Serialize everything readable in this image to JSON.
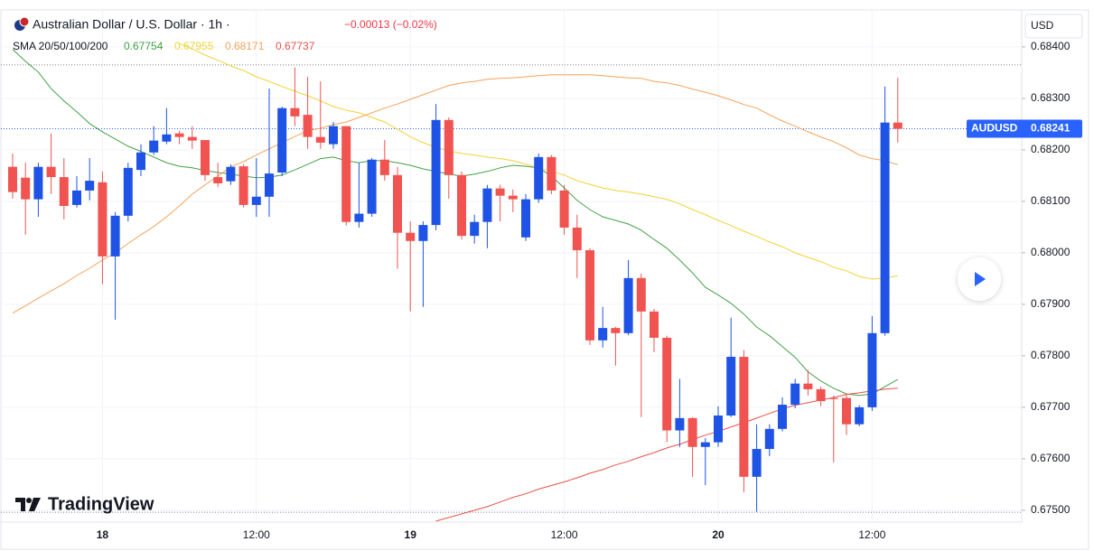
{
  "chart_data": {
    "type": "candlestick",
    "title": "Australian Dollar / U.S. Dollar · 1h ·",
    "change": "−0.00013 (−0.02%)",
    "currency": "USD",
    "symbol": "AUDUSD",
    "brand": "TradingView",
    "up_color": "#1e53e5",
    "down_color": "#f05350",
    "categories": [
      null,
      null,
      null,
      null,
      null,
      null,
      null,
      "18",
      null,
      null,
      null,
      null,
      null,
      null,
      null,
      null,
      null,
      null,
      null,
      "12:00",
      null,
      null,
      null,
      null,
      null,
      null,
      null,
      null,
      null,
      null,
      null,
      "19",
      null,
      null,
      null,
      null,
      null,
      null,
      null,
      null,
      null,
      null,
      null,
      "12:00",
      null,
      null,
      null,
      null,
      null,
      null,
      null,
      null,
      null,
      null,
      null,
      "20",
      null,
      null,
      null,
      null,
      null,
      null,
      null,
      null,
      null,
      null,
      null,
      "12:00",
      null,
      null
    ],
    "open": [
      0.68167,
      0.68146,
      0.68104,
      0.68167,
      0.68147,
      0.68093,
      0.68121,
      0.68137,
      0.67993,
      0.68072,
      0.68161,
      0.68195,
      0.68216,
      0.68232,
      0.68225,
      0.68219,
      0.68147,
      0.68139,
      0.68168,
      0.68093,
      0.68109,
      0.68156,
      0.68281,
      0.68268,
      0.68225,
      0.68211,
      0.68246,
      0.6806,
      0.68076,
      0.68181,
      0.68151,
      0.68039,
      0.68023,
      0.68054,
      0.68258,
      0.68151,
      0.68033,
      0.6806,
      0.68125,
      0.68111,
      0.6803,
      0.68104,
      0.68186,
      0.68121,
      0.68049,
      0.68005,
      0.6783,
      0.67854,
      0.67844,
      0.67951,
      0.67886,
      0.67835,
      0.67655,
      0.67679,
      0.67623,
      0.67632,
      0.67684,
      0.67798,
      0.67565,
      0.67619,
      0.67658,
      0.67705,
      0.67746,
      0.67735,
      0.67718,
      0.67718,
      0.67667,
      0.677,
      0.67844,
      0.68253
    ],
    "high": [
      0.68193,
      0.68175,
      0.68175,
      0.68232,
      0.68184,
      0.68149,
      0.68184,
      0.68158,
      0.68079,
      0.68175,
      0.68211,
      0.68246,
      0.68281,
      0.68237,
      0.68246,
      0.68219,
      0.68175,
      0.68172,
      0.68172,
      0.68184,
      0.68319,
      0.68284,
      0.6836,
      0.68342,
      0.68333,
      0.68254,
      0.68246,
      0.68175,
      0.68184,
      0.68219,
      0.68167,
      0.68061,
      0.68061,
      0.68289,
      0.68263,
      0.68158,
      0.68074,
      0.68132,
      0.68132,
      0.68123,
      0.68114,
      0.68193,
      0.6819,
      0.68132,
      0.68074,
      0.68009,
      0.67895,
      0.67856,
      0.67986,
      0.6796,
      0.67891,
      0.67839,
      0.67755,
      0.67681,
      0.6764,
      0.67702,
      0.67874,
      0.67811,
      0.67667,
      0.67667,
      0.67719,
      0.67755,
      0.67772,
      0.6774,
      0.67723,
      0.67726,
      0.67704,
      0.67877,
      0.68323,
      0.6834
    ],
    "low": [
      0.68105,
      0.68035,
      0.6807,
      0.68114,
      0.68065,
      0.68088,
      0.68102,
      0.67939,
      0.6787,
      0.68061,
      0.68149,
      0.6819,
      0.68211,
      0.68211,
      0.68202,
      0.6814,
      0.68128,
      0.68132,
      0.68088,
      0.6807,
      0.6807,
      0.68149,
      0.68246,
      0.68202,
      0.68202,
      0.68202,
      0.68053,
      0.68049,
      0.6807,
      0.6814,
      0.67969,
      0.67886,
      0.67895,
      0.68044,
      0.68105,
      0.68026,
      0.68018,
      0.68009,
      0.68061,
      0.68079,
      0.68023,
      0.68097,
      0.68114,
      0.68035,
      0.67951,
      0.67821,
      0.67816,
      0.67781,
      0.6784,
      0.67681,
      0.67807,
      0.67632,
      0.67623,
      0.67565,
      0.67549,
      0.67623,
      0.67681,
      0.67535,
      0.67497,
      0.67605,
      0.67653,
      0.67698,
      0.67723,
      0.67702,
      0.67593,
      0.67646,
      0.67663,
      0.67693,
      0.67839,
      0.68214
    ],
    "close": [
      0.68118,
      0.68104,
      0.68167,
      0.68147,
      0.68091,
      0.68121,
      0.6814,
      0.67993,
      0.68072,
      0.68165,
      0.68195,
      0.68218,
      0.6823,
      0.68225,
      0.68218,
      0.68151,
      0.68135,
      0.68167,
      0.68093,
      0.68109,
      0.68154,
      0.68281,
      0.68265,
      0.68225,
      0.68214,
      0.68246,
      0.6806,
      0.68076,
      0.68181,
      0.68151,
      0.68039,
      0.68023,
      0.68054,
      0.68258,
      0.68151,
      0.68033,
      0.6806,
      0.68125,
      0.68111,
      0.68104,
      0.68104,
      0.68186,
      0.68121,
      0.68049,
      0.68005,
      0.6783,
      0.67854,
      0.67844,
      0.67951,
      0.67886,
      0.67835,
      0.67655,
      0.67679,
      0.67623,
      0.67632,
      0.67684,
      0.67798,
      0.67565,
      0.67619,
      0.67658,
      0.67705,
      0.67746,
      0.67735,
      0.67712,
      0.67716,
      0.67667,
      0.677,
      0.67844,
      0.68253,
      0.68241
    ],
    "indicator": {
      "label": "SMA 20/50/100/200",
      "series": [
        {
          "color": "#43a047",
          "values": [
            0.68395,
            0.68372,
            0.68351,
            0.68319,
            0.68295,
            0.68274,
            0.68251,
            0.68235,
            0.68221,
            0.68207,
            0.68197,
            0.68186,
            0.68175,
            0.68168,
            0.68165,
            0.6816,
            0.68156,
            0.68153,
            0.68149,
            0.68146,
            0.68147,
            0.68151,
            0.68161,
            0.68172,
            0.68183,
            0.68186,
            0.68179,
            0.68175,
            0.68179,
            0.68179,
            0.68175,
            0.6817,
            0.68163,
            0.68158,
            0.68153,
            0.68149,
            0.68153,
            0.68158,
            0.68165,
            0.6817,
            0.68168,
            0.68165,
            0.68149,
            0.68126,
            0.68102,
            0.68084,
            0.6807,
            0.68063,
            0.68056,
            0.68044,
            0.68026,
            0.68009,
            0.67986,
            0.67961,
            0.67933,
            0.67918,
            0.67902,
            0.67881,
            0.67856,
            0.67839,
            0.67818,
            0.67797,
            0.67769,
            0.67751,
            0.67737,
            0.67726,
            0.67723,
            0.67726,
            0.6774,
            0.67754
          ]
        },
        {
          "color": "#f2d335",
          "values": [
            null,
            null,
            null,
            null,
            null,
            null,
            null,
            null,
            null,
            null,
            null,
            null,
            null,
            0.68407,
            0.68396,
            0.68384,
            0.68374,
            0.68363,
            0.68354,
            0.68342,
            0.68333,
            0.68323,
            0.68314,
            0.68305,
            0.68295,
            0.68284,
            0.68277,
            0.68272,
            0.68263,
            0.68254,
            0.6824,
            0.68225,
            0.68214,
            0.68205,
            0.68198,
            0.68193,
            0.6819,
            0.68186,
            0.68183,
            0.68179,
            0.68172,
            0.68165,
            0.68158,
            0.68151,
            0.6814,
            0.68133,
            0.68126,
            0.68121,
            0.68118,
            0.68114,
            0.68109,
            0.68104,
            0.68095,
            0.68084,
            0.68074,
            0.68063,
            0.68053,
            0.68042,
            0.68032,
            0.68021,
            0.68012,
            0.68,
            0.67991,
            0.67983,
            0.67972,
            0.67965,
            0.67954,
            0.67949,
            0.67951,
            0.67955
          ]
        },
        {
          "color": "#f5a35a",
          "values": [
            0.67883,
            0.67897,
            0.67912,
            0.67926,
            0.6794,
            0.67956,
            0.6797,
            0.67986,
            0.68,
            0.68018,
            0.68035,
            0.68051,
            0.6807,
            0.68091,
            0.68114,
            0.68132,
            0.68149,
            0.68167,
            0.68177,
            0.6819,
            0.68202,
            0.68214,
            0.68226,
            0.68237,
            0.68242,
            0.68249,
            0.68254,
            0.68263,
            0.68272,
            0.68281,
            0.68289,
            0.68298,
            0.68307,
            0.68316,
            0.68325,
            0.6833,
            0.68333,
            0.68337,
            0.68339,
            0.6834,
            0.68342,
            0.68344,
            0.68346,
            0.68346,
            0.68346,
            0.68346,
            0.68344,
            0.68342,
            0.6834,
            0.68339,
            0.68333,
            0.6833,
            0.68325,
            0.68318,
            0.68312,
            0.68305,
            0.68297,
            0.68288,
            0.68281,
            0.68268,
            0.68256,
            0.68246,
            0.68235,
            0.68225,
            0.68216,
            0.68204,
            0.6819,
            0.68183,
            0.68179,
            0.68171
          ]
        },
        {
          "color": "#e5534b",
          "values": [
            null,
            null,
            null,
            null,
            null,
            null,
            null,
            null,
            null,
            null,
            null,
            null,
            null,
            null,
            null,
            null,
            null,
            null,
            null,
            null,
            null,
            null,
            null,
            null,
            null,
            null,
            null,
            null,
            null,
            null,
            null,
            null,
            null,
            0.67479,
            0.67486,
            0.67493,
            0.675,
            0.67507,
            0.67516,
            0.67525,
            0.67532,
            0.67541,
            0.67548,
            0.67555,
            0.67563,
            0.67572,
            0.67579,
            0.67588,
            0.67595,
            0.67604,
            0.67612,
            0.67621,
            0.67628,
            0.67637,
            0.67646,
            0.67653,
            0.67662,
            0.6767,
            0.67679,
            0.67688,
            0.67697,
            0.67704,
            0.67709,
            0.67714,
            0.67719,
            0.67725,
            0.67728,
            0.67732,
            0.67735,
            0.67737
          ]
        }
      ]
    },
    "reference_lines": [
      0.68365,
      0.67496
    ],
    "ylim": [
      0.67477,
      0.6847
    ],
    "yticks": [
      {
        "value": 0.675,
        "label": "0.67500"
      },
      {
        "value": 0.676,
        "label": "0.67600"
      },
      {
        "value": 0.677,
        "label": "0.67700"
      },
      {
        "value": 0.678,
        "label": "0.67800"
      },
      {
        "value": 0.679,
        "label": "0.67900"
      },
      {
        "value": 0.68,
        "label": "0.68000"
      },
      {
        "value": 0.681,
        "label": "0.68100"
      },
      {
        "value": 0.682,
        "label": "0.68200"
      },
      {
        "value": 0.683,
        "label": "0.68300"
      },
      {
        "value": 0.684,
        "label": "0.68400"
      }
    ],
    "grid": true
  }
}
